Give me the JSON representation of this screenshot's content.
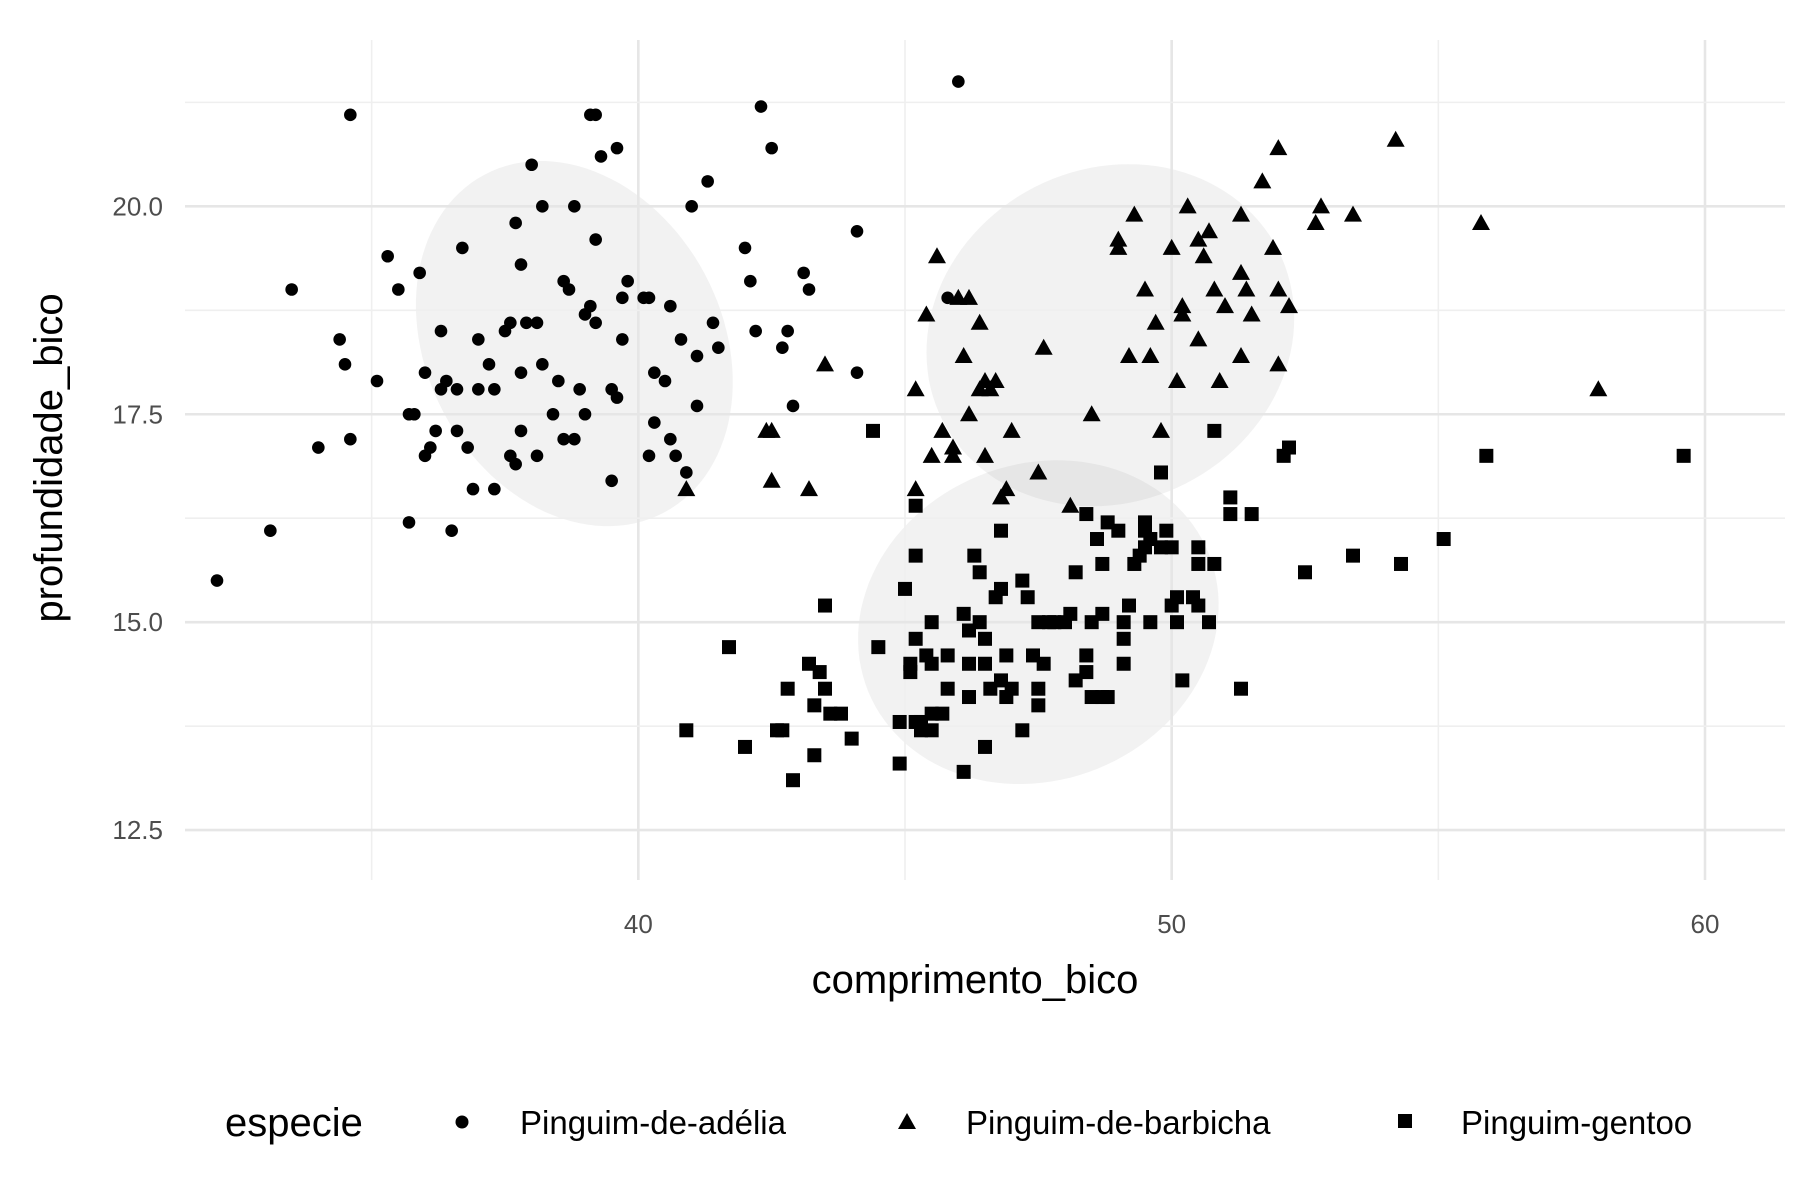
{
  "chart_data": {
    "type": "scatter",
    "title": "",
    "xlabel": "comprimento_bico",
    "ylabel": "profundidade_bico",
    "xlim": [
      31.5,
      61.5
    ],
    "ylim": [
      11.9,
      22.0
    ],
    "x_ticks": [
      40,
      50,
      60
    ],
    "x_tick_labels": [
      "40",
      "50",
      "60"
    ],
    "y_ticks": [
      12.5,
      15.0,
      17.5,
      20.0
    ],
    "y_tick_labels": [
      "12.5",
      "15.0",
      "17.5",
      "20.0"
    ],
    "grid": true,
    "legend": {
      "title": "especie",
      "position": "bottom"
    },
    "series": [
      {
        "name": "Pinguim-de-adélia",
        "shape": "circle",
        "color": "#000000",
        "ellipse": {
          "cx": 38.8,
          "cy": 18.35,
          "rx": 6.6,
          "ry": 2.3,
          "angle_deg": 28
        },
        "points": [
          [
            32.1,
            15.5
          ],
          [
            33.1,
            16.1
          ],
          [
            33.5,
            19.0
          ],
          [
            34.0,
            17.1
          ],
          [
            34.4,
            18.4
          ],
          [
            34.5,
            18.1
          ],
          [
            34.6,
            21.1
          ],
          [
            34.6,
            17.2
          ],
          [
            35.1,
            17.9
          ],
          [
            35.3,
            19.4
          ],
          [
            35.5,
            19.0
          ],
          [
            35.7,
            17.5
          ],
          [
            35.7,
            16.2
          ],
          [
            35.8,
            17.5
          ],
          [
            36.0,
            18.0
          ],
          [
            36.0,
            17.0
          ],
          [
            36.1,
            17.1
          ],
          [
            36.2,
            17.3
          ],
          [
            36.3,
            18.5
          ],
          [
            36.3,
            17.8
          ],
          [
            36.4,
            17.9
          ],
          [
            36.5,
            16.1
          ],
          [
            36.6,
            17.3
          ],
          [
            36.7,
            19.5
          ],
          [
            36.8,
            17.1
          ],
          [
            36.9,
            16.6
          ],
          [
            37.0,
            17.8
          ],
          [
            37.0,
            18.4
          ],
          [
            37.2,
            18.1
          ],
          [
            37.3,
            16.6
          ],
          [
            37.3,
            17.8
          ],
          [
            37.5,
            18.5
          ],
          [
            37.6,
            18.6
          ],
          [
            37.7,
            16.9
          ],
          [
            37.8,
            18.0
          ],
          [
            37.8,
            19.3
          ],
          [
            38.0,
            20.5
          ],
          [
            38.1,
            17.0
          ],
          [
            38.1,
            18.6
          ],
          [
            38.6,
            17.2
          ],
          [
            38.6,
            19.1
          ],
          [
            38.7,
            19.0
          ],
          [
            38.8,
            17.2
          ],
          [
            38.9,
            17.8
          ],
          [
            39.0,
            18.7
          ],
          [
            39.0,
            17.5
          ],
          [
            39.1,
            18.8
          ],
          [
            39.2,
            19.6
          ],
          [
            39.2,
            18.6
          ],
          [
            39.3,
            20.6
          ],
          [
            39.5,
            17.8
          ],
          [
            39.5,
            16.7
          ],
          [
            39.6,
            17.7
          ],
          [
            39.6,
            20.7
          ],
          [
            39.7,
            18.4
          ],
          [
            39.8,
            19.1
          ],
          [
            40.2,
            17.0
          ],
          [
            40.2,
            18.9
          ],
          [
            40.3,
            18.0
          ],
          [
            40.5,
            17.9
          ],
          [
            40.6,
            18.8
          ],
          [
            40.6,
            17.2
          ],
          [
            40.7,
            17.0
          ],
          [
            40.8,
            18.4
          ],
          [
            40.9,
            16.8
          ],
          [
            41.0,
            20.0
          ],
          [
            41.1,
            18.2
          ],
          [
            41.1,
            17.6
          ],
          [
            41.3,
            20.3
          ],
          [
            41.4,
            18.6
          ],
          [
            41.5,
            18.3
          ],
          [
            42.0,
            19.5
          ],
          [
            42.1,
            19.1
          ],
          [
            42.2,
            18.5
          ],
          [
            42.3,
            21.2
          ],
          [
            42.5,
            20.7
          ],
          [
            42.7,
            18.3
          ],
          [
            42.8,
            18.5
          ],
          [
            42.9,
            17.6
          ],
          [
            43.1,
            19.2
          ],
          [
            43.2,
            19.0
          ],
          [
            44.1,
            18.0
          ],
          [
            44.1,
            19.7
          ],
          [
            45.8,
            18.9
          ],
          [
            46.0,
            21.5
          ],
          [
            38.2,
            20.0
          ],
          [
            38.8,
            20.0
          ],
          [
            39.1,
            21.1
          ],
          [
            38.5,
            17.9
          ],
          [
            40.1,
            18.9
          ],
          [
            37.9,
            18.6
          ],
          [
            39.7,
            18.9
          ],
          [
            35.9,
            19.2
          ],
          [
            37.7,
            19.8
          ],
          [
            38.2,
            18.1
          ],
          [
            37.6,
            17.0
          ],
          [
            40.3,
            17.4
          ],
          [
            37.8,
            17.3
          ],
          [
            36.6,
            17.8
          ],
          [
            39.2,
            21.1
          ],
          [
            38.4,
            17.5
          ]
        ]
      },
      {
        "name": "Pinguim-de-barbicha",
        "shape": "triangle",
        "color": "#000000",
        "ellipse": {
          "cx": 48.85,
          "cy": 18.45,
          "rx": 8.4,
          "ry": 2.0,
          "angle_deg": 27
        },
        "points": [
          [
            40.9,
            16.6
          ],
          [
            42.4,
            17.3
          ],
          [
            42.5,
            16.7
          ],
          [
            42.5,
            17.3
          ],
          [
            43.2,
            16.6
          ],
          [
            43.5,
            18.1
          ],
          [
            45.2,
            16.6
          ],
          [
            45.2,
            17.8
          ],
          [
            45.4,
            18.7
          ],
          [
            45.5,
            17.0
          ],
          [
            45.6,
            19.4
          ],
          [
            45.7,
            17.3
          ],
          [
            45.9,
            17.1
          ],
          [
            46.0,
            18.9
          ],
          [
            46.1,
            18.2
          ],
          [
            46.2,
            17.5
          ],
          [
            46.4,
            18.6
          ],
          [
            46.4,
            17.8
          ],
          [
            46.5,
            17.9
          ],
          [
            46.6,
            17.8
          ],
          [
            46.7,
            17.9
          ],
          [
            46.8,
            16.5
          ],
          [
            46.9,
            16.6
          ],
          [
            47.0,
            17.3
          ],
          [
            47.5,
            16.8
          ],
          [
            47.6,
            18.3
          ],
          [
            48.1,
            16.4
          ],
          [
            48.5,
            17.5
          ],
          [
            49.0,
            19.5
          ],
          [
            49.2,
            18.2
          ],
          [
            49.3,
            19.9
          ],
          [
            49.5,
            19.0
          ],
          [
            49.6,
            18.2
          ],
          [
            49.7,
            18.6
          ],
          [
            49.8,
            17.3
          ],
          [
            50.0,
            19.5
          ],
          [
            50.1,
            17.9
          ],
          [
            50.2,
            18.8
          ],
          [
            50.3,
            20.0
          ],
          [
            50.5,
            18.4
          ],
          [
            50.5,
            19.6
          ],
          [
            50.6,
            19.4
          ],
          [
            50.7,
            19.7
          ],
          [
            50.8,
            19.0
          ],
          [
            50.9,
            17.9
          ],
          [
            51.0,
            18.8
          ],
          [
            51.3,
            18.2
          ],
          [
            51.3,
            19.2
          ],
          [
            51.4,
            19.0
          ],
          [
            51.5,
            18.7
          ],
          [
            51.7,
            20.3
          ],
          [
            51.9,
            19.5
          ],
          [
            52.0,
            18.1
          ],
          [
            52.0,
            20.7
          ],
          [
            52.2,
            18.8
          ],
          [
            52.7,
            19.8
          ],
          [
            52.8,
            20.0
          ],
          [
            53.4,
            19.9
          ],
          [
            54.2,
            20.8
          ],
          [
            55.8,
            19.8
          ],
          [
            58.0,
            17.8
          ],
          [
            49.0,
            19.6
          ],
          [
            50.2,
            18.7
          ],
          [
            51.3,
            19.9
          ],
          [
            52.0,
            19.0
          ],
          [
            46.5,
            17.0
          ],
          [
            45.9,
            17.0
          ],
          [
            46.2,
            18.9
          ]
        ]
      },
      {
        "name": "Pinguim-gentoo",
        "shape": "square",
        "color": "#000000",
        "ellipse": {
          "cx": 47.5,
          "cy": 15.0,
          "rx": 8.2,
          "ry": 1.9,
          "angle_deg": 22
        },
        "points": [
          [
            40.9,
            13.7
          ],
          [
            41.7,
            14.7
          ],
          [
            42.0,
            13.5
          ],
          [
            42.6,
            13.7
          ],
          [
            42.7,
            13.7
          ],
          [
            42.8,
            14.2
          ],
          [
            42.9,
            13.1
          ],
          [
            43.2,
            14.5
          ],
          [
            43.3,
            14.0
          ],
          [
            43.3,
            13.4
          ],
          [
            43.4,
            14.4
          ],
          [
            43.5,
            14.2
          ],
          [
            43.5,
            15.2
          ],
          [
            43.6,
            13.9
          ],
          [
            43.8,
            13.9
          ],
          [
            44.0,
            13.6
          ],
          [
            44.4,
            17.3
          ],
          [
            44.5,
            14.7
          ],
          [
            44.9,
            13.3
          ],
          [
            44.9,
            13.8
          ],
          [
            45.0,
            15.4
          ],
          [
            45.1,
            14.5
          ],
          [
            45.1,
            14.4
          ],
          [
            45.2,
            13.8
          ],
          [
            45.2,
            14.8
          ],
          [
            45.2,
            15.8
          ],
          [
            45.2,
            16.4
          ],
          [
            45.3,
            13.7
          ],
          [
            45.3,
            13.8
          ],
          [
            45.4,
            14.6
          ],
          [
            45.5,
            13.7
          ],
          [
            45.5,
            13.9
          ],
          [
            45.5,
            14.5
          ],
          [
            45.5,
            15.0
          ],
          [
            45.7,
            13.9
          ],
          [
            45.8,
            14.2
          ],
          [
            45.8,
            14.6
          ],
          [
            46.1,
            13.2
          ],
          [
            46.1,
            15.1
          ],
          [
            46.2,
            14.1
          ],
          [
            46.2,
            14.5
          ],
          [
            46.2,
            14.9
          ],
          [
            46.3,
            15.8
          ],
          [
            46.4,
            15.0
          ],
          [
            46.4,
            15.6
          ],
          [
            46.5,
            13.5
          ],
          [
            46.5,
            14.5
          ],
          [
            46.5,
            14.8
          ],
          [
            46.6,
            14.2
          ],
          [
            46.7,
            15.3
          ],
          [
            46.8,
            14.3
          ],
          [
            46.8,
            15.4
          ],
          [
            46.8,
            16.1
          ],
          [
            46.9,
            14.6
          ],
          [
            47.2,
            13.7
          ],
          [
            47.2,
            15.5
          ],
          [
            47.3,
            15.3
          ],
          [
            47.4,
            14.6
          ],
          [
            47.5,
            14.0
          ],
          [
            47.5,
            14.2
          ],
          [
            47.5,
            15.0
          ],
          [
            47.6,
            14.5
          ],
          [
            47.7,
            15.0
          ],
          [
            47.8,
            15.0
          ],
          [
            48.1,
            15.1
          ],
          [
            48.2,
            14.3
          ],
          [
            48.2,
            15.6
          ],
          [
            48.4,
            14.4
          ],
          [
            48.4,
            14.6
          ],
          [
            48.4,
            16.3
          ],
          [
            48.5,
            14.1
          ],
          [
            48.5,
            15.0
          ],
          [
            48.6,
            16.0
          ],
          [
            48.7,
            14.1
          ],
          [
            48.7,
            15.1
          ],
          [
            48.7,
            15.7
          ],
          [
            48.8,
            14.1
          ],
          [
            48.8,
            16.2
          ],
          [
            49.0,
            16.1
          ],
          [
            49.1,
            14.5
          ],
          [
            49.1,
            14.8
          ],
          [
            49.1,
            15.0
          ],
          [
            49.2,
            15.2
          ],
          [
            49.3,
            15.7
          ],
          [
            49.4,
            15.8
          ],
          [
            49.5,
            15.9
          ],
          [
            49.5,
            16.1
          ],
          [
            49.5,
            16.2
          ],
          [
            49.6,
            15.0
          ],
          [
            49.6,
            16.0
          ],
          [
            49.8,
            15.9
          ],
          [
            49.8,
            16.8
          ],
          [
            49.9,
            16.1
          ],
          [
            50.0,
            15.2
          ],
          [
            50.0,
            15.9
          ],
          [
            50.1,
            15.0
          ],
          [
            50.1,
            15.3
          ],
          [
            50.2,
            14.3
          ],
          [
            50.4,
            15.3
          ],
          [
            50.5,
            15.2
          ],
          [
            50.5,
            15.7
          ],
          [
            50.5,
            15.9
          ],
          [
            50.7,
            15.0
          ],
          [
            50.8,
            15.7
          ],
          [
            50.8,
            17.3
          ],
          [
            51.1,
            16.3
          ],
          [
            51.1,
            16.5
          ],
          [
            51.3,
            14.2
          ],
          [
            51.5,
            16.3
          ],
          [
            52.1,
            17.0
          ],
          [
            52.2,
            17.1
          ],
          [
            52.5,
            15.6
          ],
          [
            53.4,
            15.8
          ],
          [
            54.3,
            15.7
          ],
          [
            55.1,
            16.0
          ],
          [
            55.9,
            17.0
          ],
          [
            59.6,
            17.0
          ],
          [
            47.0,
            14.2
          ],
          [
            48.0,
            15.0
          ],
          [
            46.9,
            14.1
          ]
        ]
      }
    ]
  }
}
